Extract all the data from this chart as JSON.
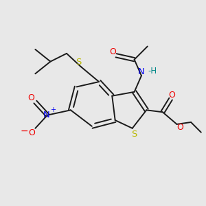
{
  "bg_color": "#e8e8e8",
  "bond_color": "#1a1a1a",
  "bond_lw": 1.4,
  "atom_colors": {
    "S": "#b8b800",
    "N": "#0000ee",
    "O": "#ee0000",
    "H": "#008888",
    "C": "#1a1a1a"
  }
}
